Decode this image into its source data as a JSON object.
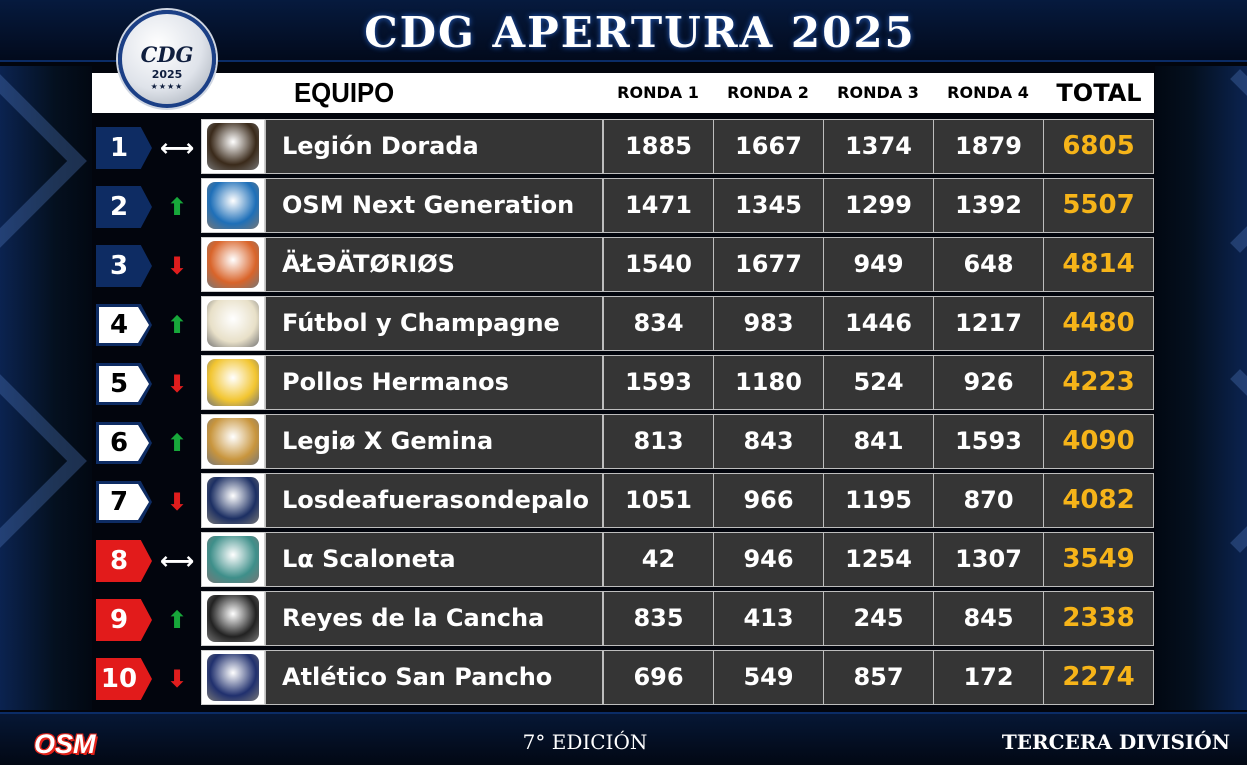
{
  "title": "CDG APERTURA 2025",
  "logo": {
    "name": "CDG",
    "year": "2025",
    "stars": "★★★★"
  },
  "header": {
    "team": "EQUIPO",
    "rounds": [
      "RONDA 1",
      "RONDA 2",
      "RONDA 3",
      "RONDA 4"
    ],
    "total": "TOTAL"
  },
  "standings": [
    {
      "position": "1",
      "trend": "same",
      "team": "Legión Dorada",
      "r1": "1885",
      "r2": "1667",
      "r3": "1374",
      "r4": "1879",
      "total": "6805"
    },
    {
      "position": "2",
      "trend": "up",
      "team": "OSM Next Generation",
      "r1": "1471",
      "r2": "1345",
      "r3": "1299",
      "r4": "1392",
      "total": "5507"
    },
    {
      "position": "3",
      "trend": "down",
      "team": "ÄŁƏÄTØRIØS",
      "r1": "1540",
      "r2": "1677",
      "r3": "949",
      "r4": "648",
      "total": "4814"
    },
    {
      "position": "4",
      "trend": "up",
      "team": "Fútbol y Champagne",
      "r1": "834",
      "r2": "983",
      "r3": "1446",
      "r4": "1217",
      "total": "4480"
    },
    {
      "position": "5",
      "trend": "down",
      "team": "Pollos Hermanos",
      "r1": "1593",
      "r2": "1180",
      "r3": "524",
      "r4": "926",
      "total": "4223"
    },
    {
      "position": "6",
      "trend": "up",
      "team": "Legiø X Gemina",
      "r1": "813",
      "r2": "843",
      "r3": "841",
      "r4": "1593",
      "total": "4090"
    },
    {
      "position": "7",
      "trend": "down",
      "team": "Losdeafuerasondepalo",
      "r1": "1051",
      "r2": "966",
      "r3": "1195",
      "r4": "870",
      "total": "4082"
    },
    {
      "position": "8",
      "trend": "same",
      "team": "Lα Scaloneta",
      "r1": "42",
      "r2": "946",
      "r3": "1254",
      "r4": "1307",
      "total": "3549"
    },
    {
      "position": "9",
      "trend": "up",
      "team": "Reyes de la Cancha",
      "r1": "835",
      "r2": "413",
      "r3": "245",
      "r4": "845",
      "total": "2338"
    },
    {
      "position": "10",
      "trend": "down",
      "team": "Atlético San Pancho",
      "r1": "696",
      "r2": "549",
      "r3": "857",
      "r4": "172",
      "total": "2274"
    }
  ],
  "trend_icons": {
    "up": "arrow-up-icon",
    "down": "arrow-down-icon",
    "same": "arrow-left-right-icon"
  },
  "colors": {
    "accent_total": "#f6b419",
    "zone_top": "#0e2c63",
    "zone_bottom": "#e21b1b",
    "trend_up": "#17a83a",
    "trend_down": "#e01d1d"
  },
  "footer": {
    "brand": "OSM",
    "edition": "7° EDICIÓN",
    "division": "TERCERA DIVISIÓN"
  }
}
